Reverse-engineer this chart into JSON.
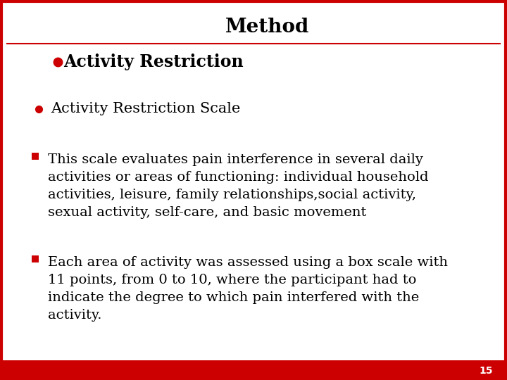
{
  "title": "Method",
  "section_heading": "Activity Restriction",
  "bullet1_text": "Activity Restriction Scale",
  "bullet2_text": "This scale evaluates pain interference in several daily\nactivities or areas of functioning: individual household\nactivities, leisure, family relationships,social activity,\nsexual activity, self-care, and basic movement",
  "bullet3_text": "Each area of activity was assessed using a box scale with\n11 points, from 0 to 10, where the participant had to\nindicate the degree to which pain interfered with the\nactivity.",
  "page_number": "15",
  "bg_color": "#ffffff",
  "title_color": "#000000",
  "heading_color": "#000000",
  "text_color": "#000000",
  "accent_color": "#cc0000",
  "border_color": "#cc0000",
  "footer_color": "#cc0000",
  "title_fontsize": 20,
  "heading_fontsize": 17,
  "bullet1_fontsize": 15,
  "body_fontsize": 14,
  "page_num_fontsize": 10
}
